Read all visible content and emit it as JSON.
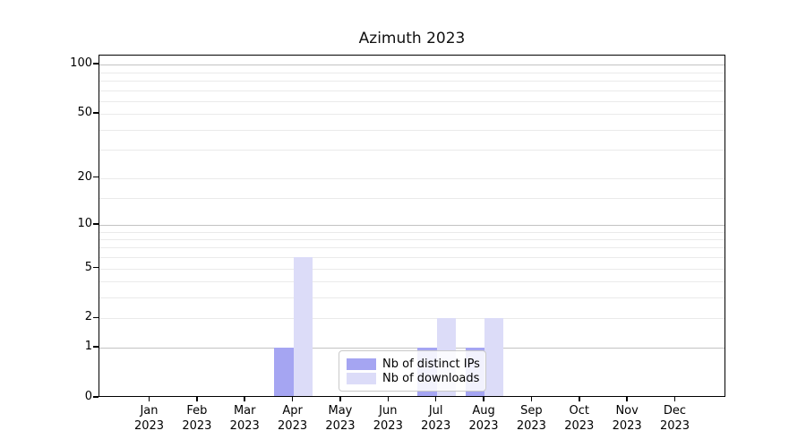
{
  "title": "Azimuth 2023",
  "chart_data": {
    "type": "bar",
    "title": "Azimuth 2023",
    "categories": [
      "Jan 2023",
      "Feb 2023",
      "Mar 2023",
      "Apr 2023",
      "May 2023",
      "Jun 2023",
      "Jul 2023",
      "Aug 2023",
      "Sep 2023",
      "Oct 2023",
      "Nov 2023",
      "Dec 2023"
    ],
    "x_tick_months": [
      "Jan",
      "Feb",
      "Mar",
      "Apr",
      "May",
      "Jun",
      "Jul",
      "Aug",
      "Sep",
      "Oct",
      "Nov",
      "Dec"
    ],
    "x_tick_year": "2023",
    "series": [
      {
        "name": "Nb of distinct IPs",
        "color": "#a5a5f2",
        "values": [
          0,
          0,
          0,
          1,
          0,
          0,
          1,
          1,
          0,
          0,
          0,
          0
        ]
      },
      {
        "name": "Nb of downloads",
        "color": "#dcdcf8",
        "values": [
          0,
          0,
          0,
          6,
          0,
          0,
          2,
          2,
          0,
          0,
          0,
          0
        ]
      }
    ],
    "y_axis": {
      "scale": "log1p",
      "tick_labels": [
        "0",
        "1",
        "2",
        "5",
        "10",
        "20",
        "50",
        "100"
      ],
      "tick_values": [
        0,
        1,
        2,
        5,
        10,
        20,
        50,
        100
      ],
      "emphasized_gridline_values": [
        1,
        10,
        100
      ],
      "minor_gridline_values": [
        3,
        4,
        6,
        7,
        8,
        9,
        15,
        30,
        40,
        60,
        70,
        80,
        90
      ],
      "y_max": 113
    },
    "grid": "horizontal",
    "legend_position": "lower center"
  },
  "legend": {
    "items": [
      {
        "label": "Nb of distinct IPs",
        "color": "#a5a5f2"
      },
      {
        "label": "Nb of downloads",
        "color": "#dcdcf8"
      }
    ]
  }
}
